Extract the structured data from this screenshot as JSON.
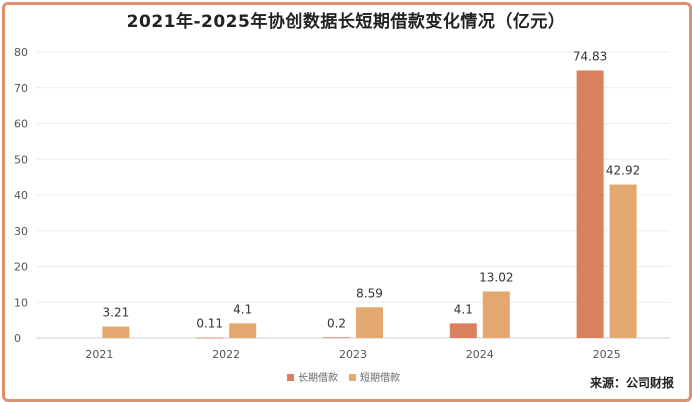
{
  "chart_data": {
    "type": "bar",
    "title": "2021年-2025年协创数据长短期借款变化情况（亿元）",
    "categories": [
      "2021",
      "2022",
      "2023",
      "2024",
      "2025"
    ],
    "series": [
      {
        "name": "长期借款",
        "values": [
          null,
          0.11,
          0.2,
          4.1,
          74.83
        ],
        "labels": [
          "",
          "0.11",
          "0.2",
          "4.1",
          "74.83"
        ],
        "color": "#d9805e"
      },
      {
        "name": "短期借款",
        "values": [
          3.21,
          4.1,
          8.59,
          13.02,
          42.92
        ],
        "labels": [
          "3.21",
          "4.1",
          "8.59",
          "13.02",
          "42.92"
        ],
        "color": "#e3a86f"
      }
    ],
    "yticks": [
      "0",
      "10",
      "20",
      "30",
      "40",
      "50",
      "60",
      "70",
      "80"
    ],
    "ylim": [
      0,
      80
    ],
    "grid": true,
    "legend": "bottom",
    "source": "来源：公司财报"
  }
}
